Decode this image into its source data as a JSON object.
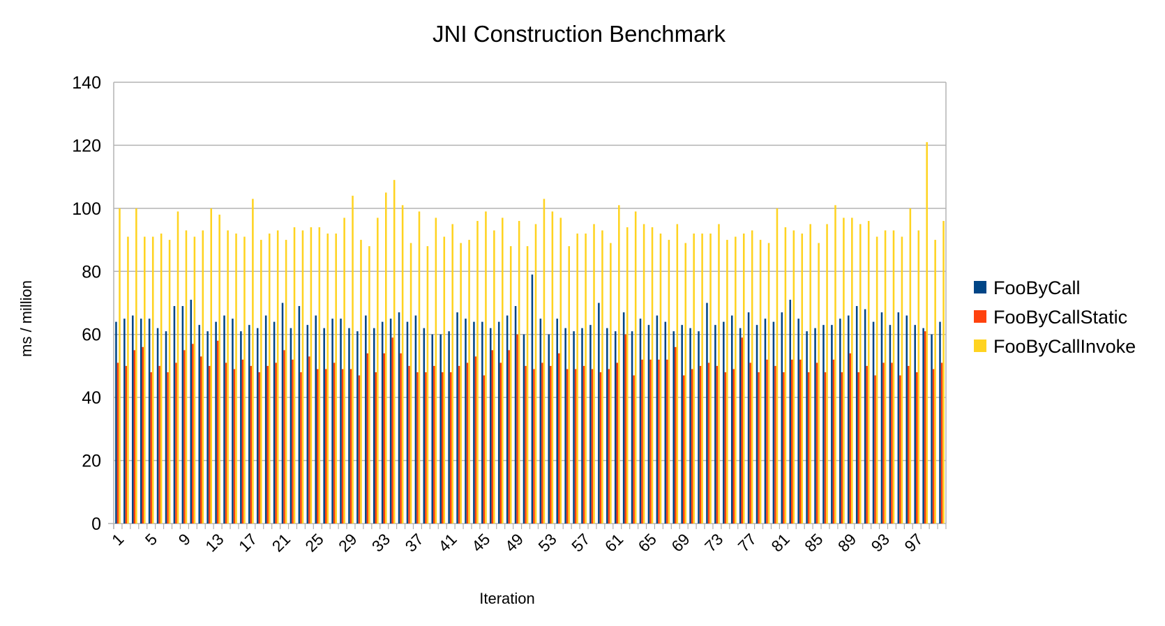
{
  "chart_data": {
    "type": "bar",
    "title": "JNI Construction Benchmark",
    "xlabel": "Iteration",
    "ylabel": "ms / million",
    "ylim": [
      0,
      140
    ],
    "yticks": [
      0,
      20,
      40,
      60,
      80,
      100,
      120,
      140
    ],
    "grid": true,
    "legend_position": "right",
    "x": [
      1,
      2,
      3,
      4,
      5,
      6,
      7,
      8,
      9,
      10,
      11,
      12,
      13,
      14,
      15,
      16,
      17,
      18,
      19,
      20,
      21,
      22,
      23,
      24,
      25,
      26,
      27,
      28,
      29,
      30,
      31,
      32,
      33,
      34,
      35,
      36,
      37,
      38,
      39,
      40,
      41,
      42,
      43,
      44,
      45,
      46,
      47,
      48,
      49,
      50,
      51,
      52,
      53,
      54,
      55,
      56,
      57,
      58,
      59,
      60,
      61,
      62,
      63,
      64,
      65,
      66,
      67,
      68,
      69,
      70,
      71,
      72,
      73,
      74,
      75,
      76,
      77,
      78,
      79,
      80,
      81,
      82,
      83,
      84,
      85,
      86,
      87,
      88,
      89,
      90,
      91,
      92,
      93,
      94,
      95,
      96,
      97,
      98,
      99,
      100
    ],
    "xtick_labels": [
      "1",
      "5",
      "9",
      "13",
      "17",
      "21",
      "25",
      "29",
      "33",
      "37",
      "41",
      "45",
      "49",
      "53",
      "57",
      "61",
      "65",
      "69",
      "73",
      "77",
      "81",
      "85",
      "89",
      "93",
      "97"
    ],
    "series": [
      {
        "name": "FooByCall",
        "color": "#004586",
        "values": [
          64,
          65,
          66,
          65,
          65,
          62,
          61,
          69,
          69,
          71,
          63,
          61,
          64,
          66,
          65,
          61,
          63,
          62,
          66,
          64,
          70,
          62,
          69,
          63,
          66,
          62,
          65,
          65,
          62,
          61,
          66,
          62,
          64,
          65,
          67,
          64,
          66,
          62,
          60,
          60,
          61,
          67,
          65,
          64,
          64,
          62,
          64,
          66,
          69,
          60,
          79,
          65,
          60,
          65,
          62,
          61,
          62,
          63,
          70,
          62,
          61,
          67,
          61,
          65,
          63,
          66,
          64,
          61,
          63,
          62,
          61,
          70,
          63,
          64,
          66,
          62,
          67,
          63,
          65,
          64,
          67,
          71,
          65,
          61,
          62,
          63,
          63,
          65,
          66,
          69,
          68,
          64,
          67,
          63,
          67,
          66,
          63,
          62,
          60,
          64
        ]
      },
      {
        "name": "FooByCallStatic",
        "color": "#FF420E",
        "values": [
          51,
          50,
          55,
          56,
          48,
          50,
          48,
          51,
          55,
          57,
          53,
          50,
          58,
          51,
          49,
          52,
          50,
          48,
          50,
          51,
          55,
          52,
          48,
          53,
          49,
          49,
          51,
          49,
          49,
          47,
          54,
          48,
          54,
          59,
          54,
          50,
          48,
          48,
          50,
          48,
          48,
          50,
          51,
          53,
          47,
          55,
          51,
          55,
          60,
          50,
          49,
          51,
          50,
          54,
          49,
          49,
          50,
          49,
          48,
          49,
          51,
          60,
          47,
          52,
          52,
          52,
          52,
          56,
          47,
          49,
          50,
          51,
          50,
          48,
          49,
          59,
          51,
          48,
          52,
          50,
          48,
          52,
          52,
          48,
          51,
          48,
          52,
          48,
          54,
          48,
          50,
          47,
          51,
          51,
          47,
          50,
          48,
          61,
          49,
          51
        ]
      },
      {
        "name": "FooByCallInvoke",
        "color": "#FFD320",
        "values": [
          100,
          91,
          100,
          91,
          91,
          92,
          90,
          99,
          93,
          91,
          93,
          100,
          98,
          93,
          92,
          91,
          103,
          90,
          92,
          93,
          90,
          94,
          93,
          94,
          94,
          92,
          92,
          97,
          104,
          90,
          88,
          97,
          105,
          109,
          101,
          89,
          99,
          88,
          97,
          91,
          95,
          89,
          90,
          96,
          99,
          93,
          97,
          88,
          96,
          88,
          95,
          103,
          99,
          97,
          88,
          92,
          92,
          95,
          93,
          89,
          101,
          94,
          99,
          95,
          94,
          92,
          90,
          95,
          89,
          92,
          92,
          92,
          95,
          90,
          91,
          92,
          93,
          90,
          89,
          100,
          94,
          93,
          92,
          95,
          89,
          95,
          101,
          97,
          97,
          95,
          96,
          91,
          93,
          93,
          91,
          100,
          93,
          121,
          90,
          96
        ]
      }
    ]
  }
}
